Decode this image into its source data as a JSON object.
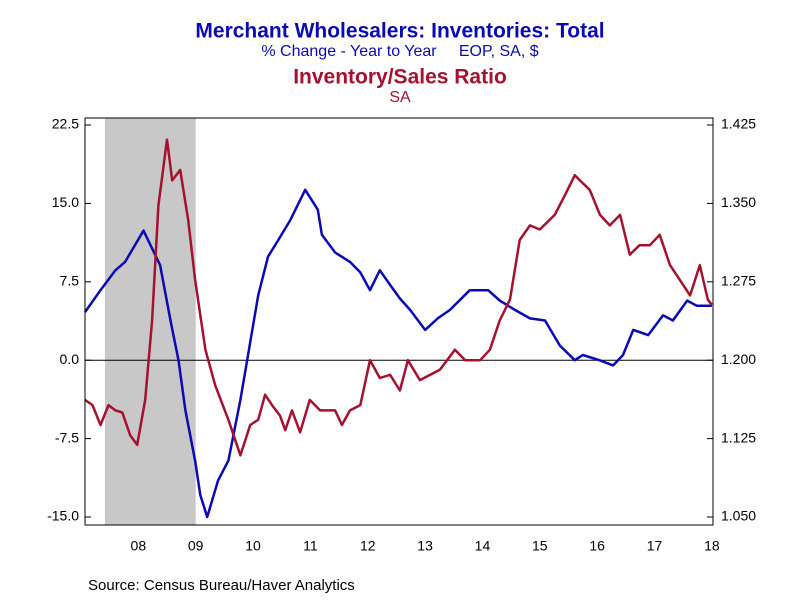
{
  "chart_data": {
    "type": "line",
    "title": "Merchant Wholesalers: Inventories: Total",
    "subtitle": "% Change - Year to Year     EOP, SA, $",
    "title2": "Inventory/Sales Ratio",
    "subtitle2": "SA",
    "source": "Source:  Census Bureau/Haver Analytics",
    "xlim": [
      2007.57,
      2018.52
    ],
    "xticks": [
      {
        "value": 2008.5,
        "label": "08"
      },
      {
        "value": 2009.5,
        "label": "09"
      },
      {
        "value": 2010.5,
        "label": "10"
      },
      {
        "value": 2011.5,
        "label": "11"
      },
      {
        "value": 2012.5,
        "label": "12"
      },
      {
        "value": 2013.5,
        "label": "13"
      },
      {
        "value": 2014.5,
        "label": "14"
      },
      {
        "value": 2015.5,
        "label": "15"
      },
      {
        "value": 2016.5,
        "label": "16"
      },
      {
        "value": 2017.5,
        "label": "17"
      },
      {
        "value": 2018.5,
        "label": "18"
      }
    ],
    "ylim": [
      -15,
      22.5
    ],
    "yticks": [
      22.5,
      {
        "value": 15,
        "label": "15.0"
      },
      7.5,
      {
        "value": 0,
        "label": "0.0"
      },
      -7.5,
      {
        "value": -15,
        "label": "-15.0"
      }
    ],
    "y2lim": [
      1.05,
      1.425
    ],
    "y2ticks": [
      1.425,
      {
        "value": 1.35,
        "label": "1.350"
      },
      1.275,
      {
        "value": 1.2,
        "label": "1.200"
      },
      1.125,
      {
        "value": 1.05,
        "label": "1.050"
      }
    ],
    "recession": [
      2007.917,
      2009.5
    ],
    "series": [
      {
        "name": "Merchant Wholesalers: Inventories: Total",
        "color": "#0a0ab4",
        "x": [
          2007.57,
          2007.84,
          2008.1,
          2008.27,
          2008.59,
          2008.88,
          2009.06,
          2009.2,
          2009.32,
          2009.49,
          2009.58,
          2009.7,
          2009.89,
          2010.07,
          2010.28,
          2010.59,
          2010.76,
          2010.94,
          2011.15,
          2011.41,
          2011.63,
          2011.7,
          2011.93,
          2012.19,
          2012.37,
          2012.54,
          2012.71,
          2012.89,
          2013.06,
          2013.24,
          2013.5,
          2013.72,
          2013.93,
          2014.28,
          2014.6,
          2014.8,
          2015.07,
          2015.33,
          2015.59,
          2015.85,
          2016.11,
          2016.25,
          2016.54,
          2016.78,
          2016.95,
          2017.13,
          2017.39,
          2017.65,
          2017.82,
          2018.07,
          2018.24,
          2018.5
        ],
        "values": [
          4.6,
          6.7,
          8.6,
          9.4,
          12.4,
          9.1,
          3.8,
          0,
          -4.8,
          -9.6,
          -12.9,
          -15,
          -11.5,
          -9.6,
          -3.8,
          6.2,
          9.9,
          11.5,
          13.4,
          16.3,
          14.4,
          12,
          10.3,
          9.4,
          8.4,
          6.7,
          8.6,
          7.2,
          5.9,
          4.8,
          2.9,
          4,
          4.8,
          6.7,
          6.7,
          5.7,
          4.8,
          4,
          3.8,
          1.4,
          0,
          0.5,
          0,
          -0.5,
          0.5,
          2.9,
          2.4,
          4.3,
          3.8,
          5.7,
          5.2,
          5.2
        ]
      },
      {
        "name": "Inventory/Sales Ratio",
        "color": "#a5112e",
        "axis": "y2",
        "x": [
          2007.57,
          2007.7,
          2007.84,
          2007.98,
          2008.1,
          2008.22,
          2008.36,
          2008.48,
          2008.62,
          2008.74,
          2008.85,
          2009.0,
          2009.09,
          2009.23,
          2009.37,
          2009.49,
          2009.67,
          2009.84,
          2010.07,
          2010.28,
          2010.45,
          2010.59,
          2010.71,
          2010.83,
          2010.97,
          2011.06,
          2011.18,
          2011.32,
          2011.49,
          2011.67,
          2011.93,
          2012.05,
          2012.19,
          2012.37,
          2012.54,
          2012.71,
          2012.89,
          2013.06,
          2013.2,
          2013.41,
          2013.59,
          2013.76,
          2014.02,
          2014.2,
          2014.46,
          2014.63,
          2014.8,
          2014.98,
          2015.15,
          2015.33,
          2015.5,
          2015.76,
          2015.94,
          2016.11,
          2016.2,
          2016.37,
          2016.55,
          2016.72,
          2016.9,
          2017.07,
          2017.24,
          2017.42,
          2017.59,
          2017.77,
          2018.12,
          2018.29,
          2018.43,
          2018.5
        ],
        "values": [
          1.162,
          1.157,
          1.138,
          1.157,
          1.152,
          1.15,
          1.128,
          1.119,
          1.162,
          1.238,
          1.348,
          1.411,
          1.372,
          1.382,
          1.334,
          1.277,
          1.21,
          1.176,
          1.143,
          1.109,
          1.138,
          1.143,
          1.167,
          1.157,
          1.147,
          1.133,
          1.152,
          1.131,
          1.162,
          1.152,
          1.152,
          1.138,
          1.152,
          1.157,
          1.2,
          1.183,
          1.186,
          1.171,
          1.2,
          1.181,
          1.186,
          1.191,
          1.21,
          1.2,
          1.2,
          1.21,
          1.238,
          1.258,
          1.315,
          1.329,
          1.325,
          1.339,
          1.358,
          1.377,
          1.372,
          1.363,
          1.339,
          1.329,
          1.339,
          1.301,
          1.31,
          1.31,
          1.32,
          1.291,
          1.262,
          1.291,
          1.258,
          1.253
        ]
      }
    ]
  }
}
